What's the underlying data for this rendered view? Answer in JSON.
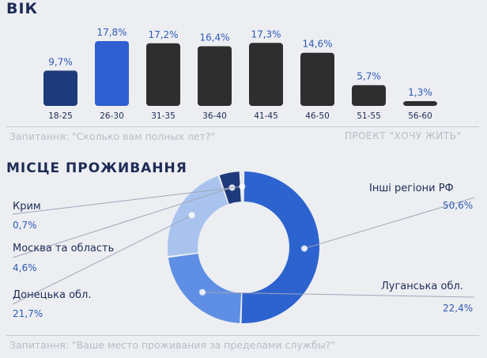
{
  "age_section": {
    "title": "ВІК",
    "question": "Запитання: \"Сколько вам полных лет?\"",
    "project": "ПРОЕКТ \"ХОЧУ ЖИТЬ\""
  },
  "residence_section": {
    "title": "МІСЦЕ ПРОЖИВАННЯ",
    "question": "Запитання: \"Ваше место проживания за пределами службы?\""
  },
  "colors": {
    "dark_navy": "#1f3a7a",
    "highlight_blue": "#2f5fd0",
    "dark_gray": "#2e2e2e",
    "ring_blue": "#2d63cf",
    "ring_mid": "#5f8fe4",
    "ring_light": "#a9c3ee"
  },
  "chart_data": [
    {
      "type": "bar",
      "title": "ВІК",
      "categories": [
        "18-25",
        "26-30",
        "31-35",
        "36-40",
        "41-45",
        "46-50",
        "51-55",
        "56-60"
      ],
      "values": [
        9.7,
        17.8,
        17.2,
        16.4,
        17.3,
        14.6,
        5.7,
        1.3
      ],
      "value_labels": [
        "9,7%",
        "17,8%",
        "17,2%",
        "16,4%",
        "17,3%",
        "14,6%",
        "5,7%",
        "1,3%"
      ],
      "bar_colors": [
        "#1f3a7a",
        "#2f5fd0",
        "#2e2e2e",
        "#2e2e2e",
        "#2e2e2e",
        "#2e2e2e",
        "#2e2e2e",
        "#2e2e2e"
      ],
      "unit": "%"
    },
    {
      "type": "pie",
      "title": "МІСЦЕ ПРОЖИВАННЯ",
      "slices": [
        {
          "label": "Інші регіони РФ",
          "value": 50.6,
          "value_label": "50,6%",
          "color": "#2d63cf"
        },
        {
          "label": "Луганська обл.",
          "value": 22.4,
          "value_label": "22,4%",
          "color": "#5f8fe4"
        },
        {
          "label": "Донецька обл.",
          "value": 21.7,
          "value_label": "21,7%",
          "color": "#a9c3ee"
        },
        {
          "label": "Москва та область",
          "value": 4.6,
          "value_label": "4,6%",
          "color": "#1f3a7a"
        },
        {
          "label": "Крим",
          "value": 0.7,
          "value_label": "0,7%",
          "color": "#dfe6f3"
        }
      ],
      "unit": "%"
    }
  ]
}
